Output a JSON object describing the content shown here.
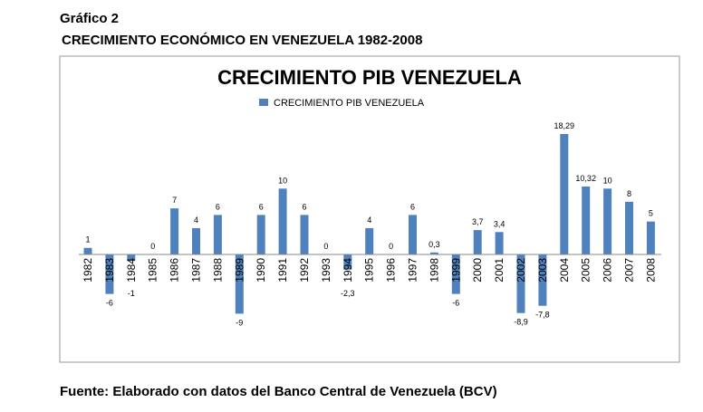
{
  "header": {
    "figure_label": "Gráfico 2",
    "subtitle": "CRECIMIENTO ECONÓMICO EN VENEZUELA 1982-2008"
  },
  "footer": {
    "source": "Fuente: Elaborado con datos del Banco Central de Venezuela (BCV)"
  },
  "chart_data": {
    "type": "bar",
    "title": "CRECIMIENTO PIB VENEZUELA",
    "legend": [
      "CRECIMIENTO  PIB VENEZUELA"
    ],
    "legend_position": "top",
    "color": "#4f81bd",
    "categories": [
      "1982",
      "1983",
      "1984",
      "1985",
      "1986",
      "1987",
      "1988",
      "1989",
      "1990",
      "1991",
      "1992",
      "1993",
      "1994",
      "1995",
      "1996",
      "1997",
      "1998",
      "1999",
      "2000",
      "2001",
      "2002",
      "2003",
      "2004",
      "2005",
      "2006",
      "2007",
      "2008"
    ],
    "values": [
      1,
      -6,
      -1,
      0,
      7,
      4,
      6,
      -9,
      6,
      10,
      6,
      0,
      -2.3,
      4,
      0,
      6,
      0.3,
      -6,
      3.7,
      3.4,
      -8.9,
      -7.8,
      18.29,
      10.32,
      10,
      8,
      5
    ],
    "labels": [
      "1",
      "-6",
      "-1",
      "0",
      "7",
      "4",
      "6",
      "-9",
      "6",
      "10",
      "6",
      "0",
      "-2,3",
      "4",
      "0",
      "6",
      "0,3",
      "-6",
      "3,7",
      "3,4",
      "-8,9",
      "-7,8",
      "18,29",
      "10,32",
      "10",
      "8",
      "5"
    ],
    "grid": false
  }
}
